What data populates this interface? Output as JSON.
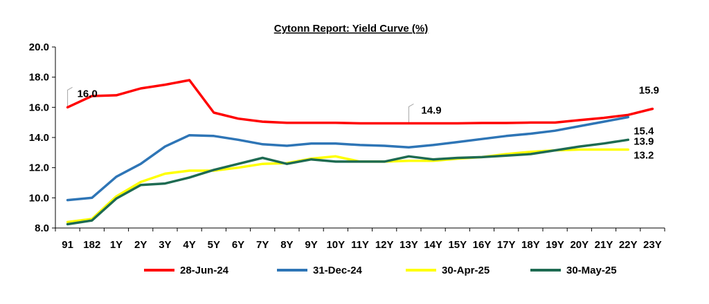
{
  "chart_data": {
    "type": "line",
    "title": "Cytonn Report: Yield Curve (%)",
    "xlabel": "",
    "ylabel": "",
    "ylim": [
      8.0,
      20.0
    ],
    "yticks": [
      "8.0",
      "10.0",
      "12.0",
      "14.0",
      "16.0",
      "18.0",
      "20.0"
    ],
    "grid": false,
    "legend_position": "bottom",
    "categories": [
      "91",
      "182",
      "1Y",
      "2Y",
      "3Y",
      "4Y",
      "5Y",
      "6Y",
      "7Y",
      "8Y",
      "9Y",
      "10Y",
      "11Y",
      "12Y",
      "13Y",
      "14Y",
      "15Y",
      "16Y",
      "17Y",
      "18Y",
      "19Y",
      "20Y",
      "21Y",
      "22Y",
      "23Y"
    ],
    "series": [
      {
        "name": "28-Jun-24",
        "color": "#ff0000",
        "values": [
          16.0,
          16.75,
          16.8,
          17.25,
          17.5,
          17.8,
          15.65,
          15.25,
          15.05,
          14.97,
          14.97,
          14.97,
          14.94,
          14.94,
          14.94,
          14.94,
          14.94,
          14.96,
          14.96,
          14.99,
          14.99,
          15.15,
          15.3,
          15.5,
          15.9
        ]
      },
      {
        "name": "31-Dec-24",
        "color": "#2e75b6",
        "values": [
          9.85,
          10.0,
          11.4,
          12.25,
          13.4,
          14.15,
          14.1,
          13.85,
          13.55,
          13.45,
          13.6,
          13.6,
          13.5,
          13.45,
          13.35,
          13.5,
          13.7,
          13.9,
          14.1,
          14.25,
          14.45,
          14.75,
          15.05,
          15.35,
          null
        ]
      },
      {
        "name": "30-Apr-25",
        "color": "#ffff00",
        "values": [
          8.4,
          8.6,
          10.1,
          11.05,
          11.6,
          11.8,
          11.8,
          12.0,
          12.25,
          12.3,
          12.6,
          12.75,
          12.4,
          12.4,
          12.45,
          12.45,
          12.6,
          12.7,
          12.9,
          13.05,
          13.15,
          13.2,
          13.2,
          13.2,
          null
        ]
      },
      {
        "name": "30-May-25",
        "color": "#1e6b52",
        "values": [
          8.25,
          8.5,
          9.95,
          10.85,
          10.95,
          11.35,
          11.85,
          12.25,
          12.65,
          12.25,
          12.55,
          12.4,
          12.4,
          12.4,
          12.75,
          12.55,
          12.65,
          12.7,
          12.8,
          12.9,
          13.15,
          13.4,
          13.6,
          13.85,
          null
        ]
      }
    ],
    "annotations": [
      {
        "text": "16.0",
        "series": "28-Jun-24",
        "category": "91"
      },
      {
        "text": "14.9",
        "series": "28-Jun-24",
        "category": "13Y"
      },
      {
        "text": "15.9",
        "series": "28-Jun-24",
        "category": "23Y"
      },
      {
        "text": "15.4",
        "series": "31-Dec-24",
        "category": "22Y"
      },
      {
        "text": "13.9",
        "series": "30-May-25",
        "category": "22Y"
      },
      {
        "text": "13.2",
        "series": "30-Apr-25",
        "category": "22Y"
      }
    ]
  }
}
